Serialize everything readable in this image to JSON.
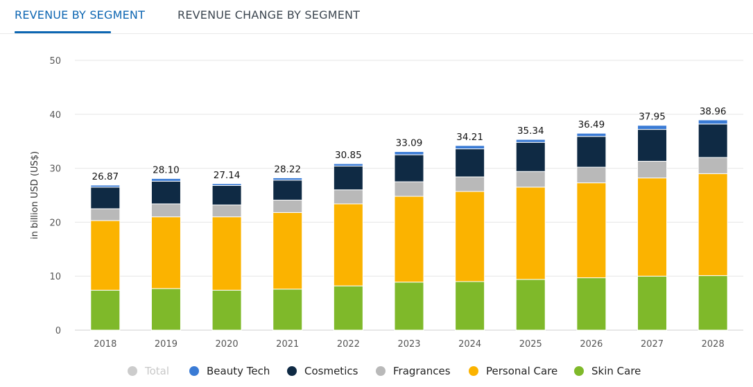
{
  "tabs": {
    "active": "REVENUE BY SEGMENT",
    "inactive": "REVENUE CHANGE BY SEGMENT"
  },
  "legend": [
    {
      "label": "Total",
      "color": "#cccccc",
      "enabled": false
    },
    {
      "label": "Beauty Tech",
      "color": "#3a7bd5",
      "enabled": true
    },
    {
      "label": "Cosmetics",
      "color": "#0f2a44",
      "enabled": true
    },
    {
      "label": "Fragrances",
      "color": "#b9b9b9",
      "enabled": true
    },
    {
      "label": "Personal Care",
      "color": "#fbb300",
      "enabled": true
    },
    {
      "label": "Skin Care",
      "color": "#7fb92a",
      "enabled": true
    }
  ],
  "chart_data": {
    "type": "bar",
    "stacked": true,
    "ylabel": "in billion USD (US$)",
    "ylim": [
      0,
      50
    ],
    "yticks": [
      "0",
      "10",
      "20",
      "30",
      "40",
      "50"
    ],
    "grid": true,
    "categories": [
      "2018",
      "2019",
      "2020",
      "2021",
      "2022",
      "2023",
      "2024",
      "2025",
      "2026",
      "2027",
      "2028"
    ],
    "totals": [
      "26.87",
      "28.10",
      "27.14",
      "28.22",
      "30.85",
      "33.09",
      "34.21",
      "35.34",
      "36.49",
      "37.95",
      "38.96"
    ],
    "series": [
      {
        "name": "Skin Care",
        "color": "#7fb92a",
        "values": [
          7.4,
          7.7,
          7.4,
          7.6,
          8.2,
          8.9,
          9.0,
          9.4,
          9.7,
          10.0,
          10.1
        ]
      },
      {
        "name": "Personal Care",
        "color": "#fbb300",
        "values": [
          12.9,
          13.3,
          13.6,
          14.2,
          15.2,
          15.9,
          16.7,
          17.1,
          17.6,
          18.2,
          18.9
        ]
      },
      {
        "name": "Fragrances",
        "color": "#b9b9b9",
        "values": [
          2.2,
          2.4,
          2.2,
          2.3,
          2.6,
          2.7,
          2.7,
          2.9,
          2.9,
          3.1,
          3.0
        ]
      },
      {
        "name": "Cosmetics",
        "color": "#0f2a44",
        "values": [
          4.0,
          4.2,
          3.6,
          3.7,
          4.4,
          5.0,
          5.2,
          5.4,
          5.7,
          5.9,
          6.2
        ]
      },
      {
        "name": "Beauty Tech",
        "color": "#3a7bd5",
        "values": [
          0.37,
          0.5,
          0.34,
          0.42,
          0.45,
          0.59,
          0.61,
          0.54,
          0.59,
          0.75,
          0.76
        ]
      }
    ],
    "legend_position": "bottom"
  }
}
